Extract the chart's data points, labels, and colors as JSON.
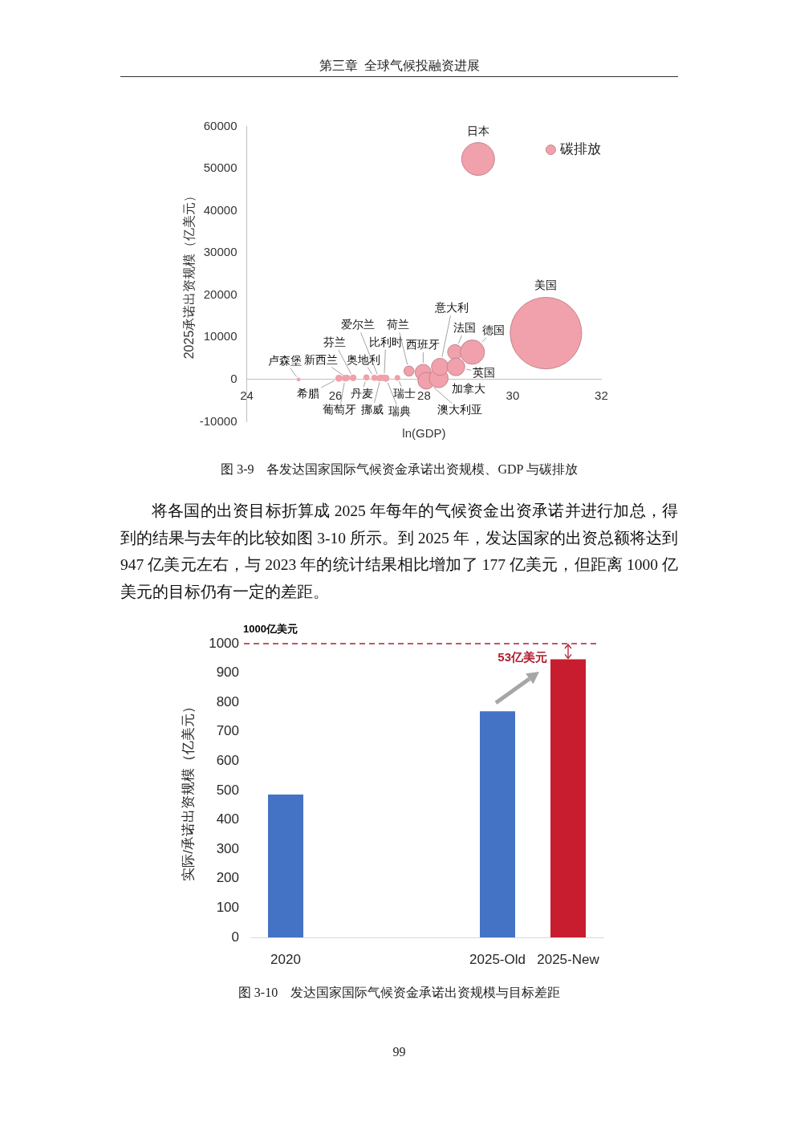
{
  "chart_data": [
    {
      "type": "bubble",
      "title": "图 3-9　各发达国家国际气候资金承诺出资规模、GDP 与碳排放",
      "xlabel": "ln(GDP)",
      "ylabel": "2025承诺出资规模（亿美元）",
      "annotations": [
        "第三章  全球气候投融资进展"
      ],
      "xlim": [
        24,
        32
      ],
      "xticks": [
        24,
        26,
        28,
        30,
        32
      ],
      "ylim": [
        -10000,
        60000
      ],
      "yticks": [
        -10000,
        0,
        10000,
        20000,
        30000,
        40000,
        50000,
        60000
      ],
      "legend": "top right",
      "series": [
        {
          "name": "碳排放",
          "color": "#f1a1ab",
          "x": [
            25.17,
            26.08,
            26.22,
            26.26,
            26.4,
            26.7,
            26.88,
            26.98,
            27.02,
            27.1,
            27.14,
            27.4,
            27.66,
            27.98,
            28.05,
            28.33,
            28.36,
            28.7,
            28.72,
            29.09,
            29.22,
            30.75
          ],
          "values": [
            0,
            300,
            300,
            400,
            400,
            500,
            400,
            300,
            400,
            400,
            300,
            400,
            2000,
            1700,
            -300,
            300,
            3000,
            6500,
            3000,
            6500,
            52300,
            11000
          ],
          "sizes": [
            0.002,
            0.008,
            0.007,
            0.006,
            0.007,
            0.006,
            0.006,
            0.005,
            0.007,
            0.007,
            0.008,
            0.005,
            0.02,
            0.05,
            0.055,
            0.07,
            0.057,
            0.044,
            0.061,
            0.115,
            0.21,
            1
          ],
          "value_labels": [
            "卢森堡",
            "希腊",
            "葡萄牙",
            "新西兰",
            "芬兰",
            "丹麦",
            "奥地利",
            "爱尔兰",
            "挪威",
            "比利时",
            "瑞典",
            "瑞士",
            "荷兰",
            "西班牙",
            "澳大利亚",
            "加拿大",
            "意大利",
            "法国",
            "英国",
            "德国",
            "日本",
            "美国"
          ]
        }
      ]
    },
    {
      "type": "bar",
      "title": "图 3-10　发达国家国际气候资金承诺出资规模与目标差距",
      "ylabel": "实际/承诺出资规模（亿美元）",
      "categories": [
        "2020",
        null,
        null,
        "2025-Old",
        "2025-New"
      ],
      "values": [
        486,
        null,
        null,
        770,
        947
      ],
      "colors": [
        "#4472c4",
        "#4472c4",
        "#4472c4",
        "#4472c4",
        "#c81d2f"
      ],
      "ylim": [
        0,
        1000
      ],
      "yticks": [
        0,
        100,
        200,
        300,
        400,
        500,
        600,
        700,
        800,
        900,
        1000
      ],
      "ref_lines": [
        {
          "axis": "y",
          "value": 1000,
          "label": "1000亿美元",
          "color": "#b01e2e",
          "line_style": "dashed"
        }
      ],
      "annotations": [
        "将各国的出资目标折算成 2025 年每年的气候资金出资承诺并进行加总，得到的结果与去年的比较如图 3-10 所示。到 2025 年，发达国家的出资总额将达到 947 亿美元左右，与 2023 年的统计结果相比增加了 177 亿美元，但距离 1000 亿美元的目标仍有一定的差距。",
        {
          "text": "53亿美元",
          "x": "2025-New",
          "y": 947
        },
        "99"
      ]
    }
  ]
}
